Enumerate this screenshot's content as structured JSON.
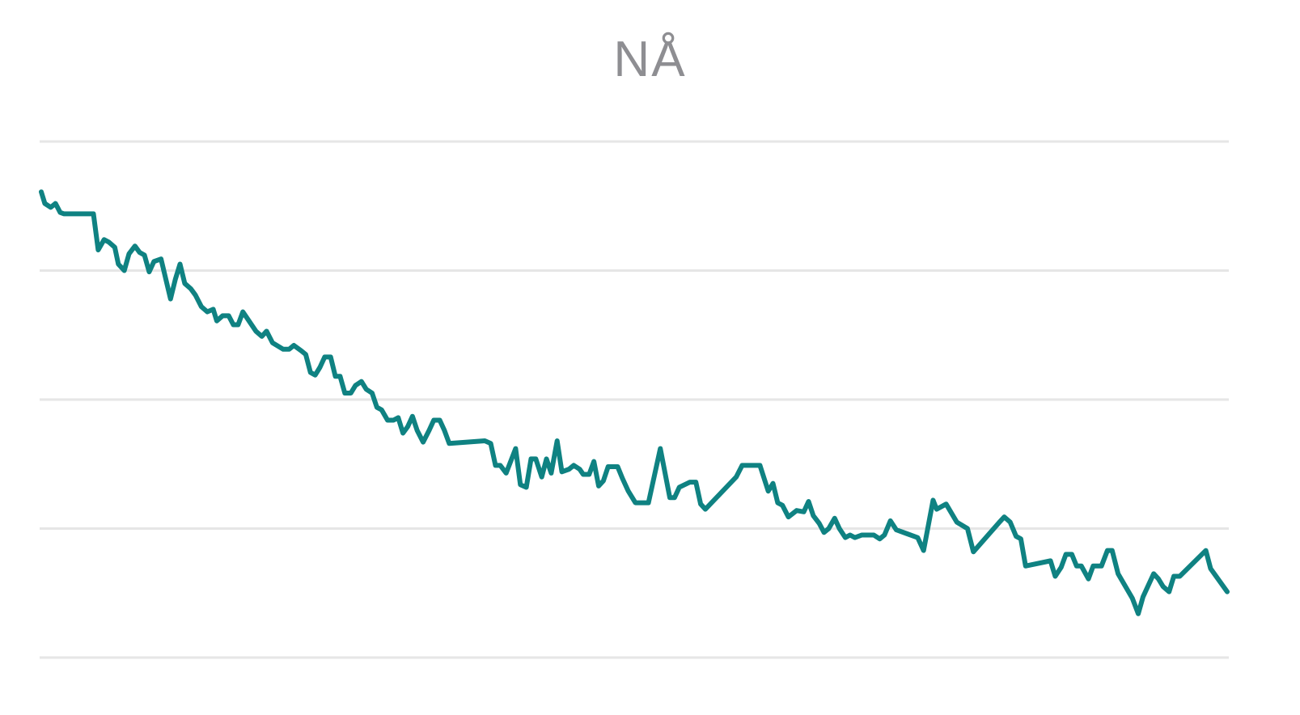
{
  "chart_data": {
    "type": "line",
    "title": "NÅ",
    "xlabel": "",
    "ylabel": "",
    "xlim": [
      0,
      100
    ],
    "ylim": [
      0,
      4
    ],
    "grid": true,
    "gridlines_y": [
      0,
      1,
      2,
      3,
      4
    ],
    "line_color": "#0f8282",
    "grid_color": "#e6e6e6",
    "title_color": "#8e8e92",
    "x": [
      0,
      0.3,
      0.8,
      1.2,
      1.6,
      1.9,
      4.4,
      4.8,
      5.3,
      5.7,
      6.2,
      6.5,
      7.0,
      7.4,
      7.9,
      8.3,
      8.7,
      9.1,
      9.5,
      10.1,
      10.9,
      11.3,
      11.7,
      12.1,
      12.6,
      13.0,
      13.5,
      14.0,
      14.5,
      14.8,
      15.3,
      15.8,
      16.2,
      16.6,
      17.0,
      18.1,
      18.6,
      19.0,
      19.5,
      20.4,
      20.9,
      21.3,
      21.9,
      22.3,
      22.7,
      23.1,
      23.5,
      23.9,
      24.4,
      24.8,
      25.2,
      25.6,
      26.1,
      26.5,
      27.0,
      27.4,
      27.9,
      28.3,
      28.7,
      29.2,
      29.7,
      30.1,
      30.5,
      30.9,
      31.3,
      31.7,
      32.2,
      32.7,
      33.1,
      33.6,
      34.0,
      34.4,
      37.4,
      37.9,
      38.3,
      38.7,
      39.2,
      40.0,
      40.4,
      40.9,
      41.3,
      41.7,
      42.2,
      42.6,
      43.0,
      43.5,
      43.9,
      44.5,
      44.9,
      45.4,
      45.7,
      46.2,
      46.6,
      47.0,
      47.4,
      47.8,
      48.6,
      49.0,
      49.5,
      50.1,
      51.2,
      52.2,
      53.0,
      53.4,
      53.8,
      54.7,
      55.2,
      55.6,
      56.0,
      58.6,
      59.1,
      60.6,
      61.3,
      61.7,
      62.1,
      62.5,
      63.0,
      63.7,
      64.3,
      64.7,
      65.1,
      65.6,
      66.0,
      66.4,
      66.9,
      67.3,
      67.8,
      68.2,
      68.6,
      69.2,
      70.2,
      70.7,
      71.1,
      71.6,
      72.1,
      73.0,
      73.9,
      74.4,
      75.2,
      75.5,
      76.3,
      77.2,
      78.1,
      78.6,
      80.8,
      81.2,
      81.7,
      82.2,
      82.6,
      83.0,
      85.1,
      85.5,
      86.0,
      86.4,
      86.9,
      87.3,
      87.7,
      88.3,
      88.7,
      89.4,
      89.9,
      90.3,
      90.8,
      92.0,
      92.5,
      92.9,
      93.8,
      94.2,
      94.6,
      95.1,
      95.5,
      96.0,
      98.2,
      98.6,
      100.0
    ],
    "series": [
      {
        "values": [
          3.61,
          3.52,
          3.49,
          3.52,
          3.45,
          3.44,
          3.44,
          3.16,
          3.24,
          3.22,
          3.18,
          3.05,
          3.0,
          3.13,
          3.19,
          3.14,
          3.12,
          2.99,
          3.07,
          3.09,
          2.78,
          2.93,
          3.05,
          2.9,
          2.86,
          2.81,
          2.72,
          2.68,
          2.7,
          2.61,
          2.65,
          2.65,
          2.58,
          2.58,
          2.68,
          2.53,
          2.49,
          2.53,
          2.44,
          2.39,
          2.39,
          2.42,
          2.38,
          2.35,
          2.21,
          2.19,
          2.25,
          2.33,
          2.33,
          2.18,
          2.18,
          2.05,
          2.05,
          2.11,
          2.14,
          2.08,
          2.05,
          1.94,
          1.92,
          1.84,
          1.84,
          1.86,
          1.74,
          1.79,
          1.87,
          1.76,
          1.67,
          1.76,
          1.84,
          1.84,
          1.76,
          1.66,
          1.68,
          1.66,
          1.49,
          1.49,
          1.43,
          1.62,
          1.34,
          1.32,
          1.54,
          1.54,
          1.4,
          1.54,
          1.43,
          1.68,
          1.44,
          1.46,
          1.49,
          1.46,
          1.42,
          1.42,
          1.52,
          1.33,
          1.37,
          1.48,
          1.48,
          1.39,
          1.29,
          1.2,
          1.2,
          1.62,
          1.24,
          1.24,
          1.32,
          1.36,
          1.36,
          1.19,
          1.15,
          1.4,
          1.49,
          1.49,
          1.29,
          1.35,
          1.2,
          1.18,
          1.09,
          1.14,
          1.13,
          1.21,
          1.1,
          1.04,
          0.97,
          1.0,
          1.08,
          1.0,
          0.93,
          0.95,
          0.93,
          0.95,
          0.95,
          0.92,
          0.95,
          1.06,
          0.99,
          0.96,
          0.93,
          0.83,
          1.22,
          1.15,
          1.19,
          1.05,
          1.0,
          0.82,
          1.05,
          1.09,
          1.05,
          0.94,
          0.92,
          0.71,
          0.75,
          0.63,
          0.7,
          0.8,
          0.8,
          0.71,
          0.71,
          0.61,
          0.71,
          0.71,
          0.83,
          0.83,
          0.65,
          0.46,
          0.34,
          0.47,
          0.65,
          0.61,
          0.55,
          0.51,
          0.63,
          0.63,
          0.83,
          0.69,
          0.51
        ]
      }
    ]
  }
}
